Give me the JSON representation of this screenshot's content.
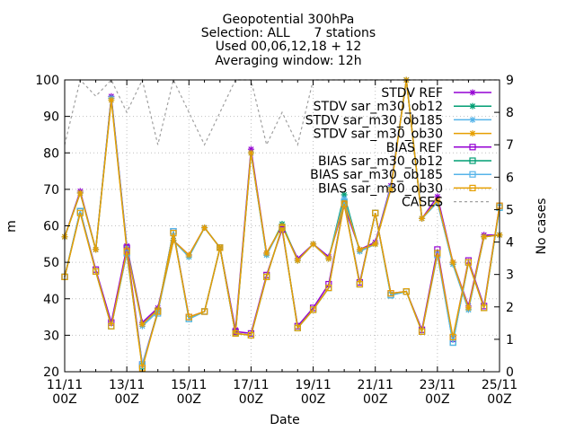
{
  "title_lines": [
    "Geopotential 300hPa",
    "Selection: ALL      7 stations",
    "Used 00,06,12,18 + 12",
    "Averaging window: 12h"
  ],
  "chart_data": {
    "type": "line",
    "xlabel": "Date",
    "ylabel": "m",
    "y2label": "No cases",
    "ylim": [
      20,
      100
    ],
    "y2lim": [
      0,
      9
    ],
    "yticks": [
      20,
      30,
      40,
      50,
      60,
      70,
      80,
      90,
      100
    ],
    "y2ticks": [
      0,
      1,
      2,
      3,
      4,
      5,
      6,
      7,
      8,
      9
    ],
    "xlim": [
      0,
      28
    ],
    "x_tick_labels": [
      {
        "x": 0,
        "l1": "11/11",
        "l2": "00Z"
      },
      {
        "x": 4,
        "l1": "13/11",
        "l2": "00Z"
      },
      {
        "x": 8,
        "l1": "15/11",
        "l2": "00Z"
      },
      {
        "x": 12,
        "l1": "17/11",
        "l2": "00Z"
      },
      {
        "x": 16,
        "l1": "19/11",
        "l2": "00Z"
      },
      {
        "x": 20,
        "l1": "21/11",
        "l2": "00Z"
      },
      {
        "x": 24,
        "l1": "23/11",
        "l2": "00Z"
      },
      {
        "x": 28,
        "l1": "25/11",
        "l2": "00Z"
      }
    ],
    "grid": true,
    "legend_position": "top-right",
    "series": [
      {
        "name": "STDV REF",
        "color": "#9400d3",
        "marker": "star",
        "axis": "y",
        "x": [
          0,
          1,
          2,
          3,
          4,
          5,
          6,
          7,
          8,
          9,
          10,
          11,
          12,
          13,
          14,
          15,
          16,
          17,
          18,
          19,
          20,
          21,
          22,
          23,
          24,
          25,
          26,
          27,
          28
        ],
        "values": [
          57,
          69.5,
          53.5,
          95.5,
          54.5,
          33.5,
          37.5,
          56,
          52,
          59.5,
          54,
          31.5,
          81,
          52.5,
          60,
          51,
          55,
          51.5,
          65.5,
          53.5,
          55.5,
          71,
          100,
          62,
          68,
          50,
          38,
          57.5,
          57.5
        ]
      },
      {
        "name": "STDV sar_m30_ob12",
        "color": "#009e73",
        "marker": "star",
        "axis": "y",
        "x": [
          0,
          1,
          2,
          3,
          4,
          5,
          6,
          7,
          8,
          9,
          10,
          11,
          12,
          13,
          14,
          15,
          16,
          17,
          18,
          19,
          20,
          21,
          22,
          23,
          24,
          25,
          26,
          27,
          28
        ],
        "values": [
          57,
          69,
          53.5,
          95,
          54,
          33,
          37,
          56,
          51.5,
          59.5,
          54,
          30.5,
          80,
          52,
          60.5,
          50.5,
          55,
          51,
          68.5,
          53,
          55,
          70.5,
          100,
          62,
          66.5,
          49.5,
          37,
          57,
          57.5
        ]
      },
      {
        "name": "STDV sar_m30_ob185",
        "color": "#56b4e9",
        "marker": "star",
        "axis": "y",
        "x": [
          0,
          1,
          2,
          3,
          4,
          5,
          6,
          7,
          8,
          9,
          10,
          11,
          12,
          13,
          14,
          15,
          16,
          17,
          18,
          19,
          20,
          21,
          22,
          23,
          24,
          25,
          26,
          27,
          28
        ],
        "values": [
          57,
          69,
          53.5,
          95,
          54,
          32.5,
          36.5,
          56,
          51.5,
          59.5,
          54,
          30.5,
          80,
          52,
          60,
          50.5,
          55,
          51,
          67.5,
          53,
          55,
          70.5,
          100,
          62,
          66.5,
          49.5,
          37,
          57,
          57.5
        ]
      },
      {
        "name": "STDV sar_m30_ob30",
        "color": "#e69f00",
        "marker": "star",
        "axis": "y",
        "x": [
          0,
          1,
          2,
          3,
          4,
          5,
          6,
          7,
          8,
          9,
          10,
          11,
          12,
          13,
          14,
          15,
          16,
          17,
          18,
          19,
          20,
          21,
          22,
          23,
          24,
          25,
          26,
          27,
          28
        ],
        "values": [
          57,
          69,
          53.5,
          94.5,
          53.5,
          33,
          37,
          56,
          52,
          59.5,
          54,
          30.5,
          80,
          52.5,
          60,
          50.5,
          55,
          51,
          66.5,
          53.5,
          55,
          70,
          100,
          62,
          67,
          50,
          37.5,
          57,
          57.5
        ]
      },
      {
        "name": "BIAS REF",
        "color": "#9400d3",
        "marker": "box",
        "axis": "y",
        "x": [
          0,
          1,
          2,
          3,
          4,
          5,
          6,
          7,
          8,
          9,
          10,
          11,
          12,
          13,
          14,
          15,
          16,
          17,
          18,
          19,
          20,
          21,
          22,
          23,
          24,
          25,
          26,
          27,
          28
        ],
        "values": [
          46,
          64,
          48,
          33.5,
          54,
          22,
          36.5,
          58.5,
          35,
          36.5,
          54,
          31,
          30.5,
          46.5,
          59,
          32.5,
          37.5,
          44,
          66,
          44.5,
          63.5,
          41.5,
          42,
          31.5,
          53.5,
          29,
          50.5,
          38,
          65.5
        ]
      },
      {
        "name": "BIAS sar_m30_ob12",
        "color": "#009e73",
        "marker": "box",
        "axis": "y",
        "x": [
          0,
          1,
          2,
          3,
          4,
          5,
          6,
          7,
          8,
          9,
          10,
          11,
          12,
          13,
          14,
          15,
          16,
          17,
          18,
          19,
          20,
          21,
          22,
          23,
          24,
          25,
          26,
          27,
          28
        ],
        "values": [
          46,
          64,
          47.5,
          32.5,
          52.5,
          21.5,
          36.5,
          58.5,
          34.5,
          36.5,
          54,
          30.5,
          30,
          46,
          59.5,
          32,
          37,
          43,
          66.5,
          44,
          63.5,
          41,
          42,
          31,
          52.5,
          28,
          50,
          37.5,
          65
        ]
      },
      {
        "name": "BIAS sar_m30_ob185",
        "color": "#56b4e9",
        "marker": "box",
        "axis": "y",
        "x": [
          0,
          1,
          2,
          3,
          4,
          5,
          6,
          7,
          8,
          9,
          10,
          11,
          12,
          13,
          14,
          15,
          16,
          17,
          18,
          19,
          20,
          21,
          22,
          23,
          24,
          25,
          26,
          27,
          28
        ],
        "values": [
          46,
          64,
          47.5,
          32.5,
          52.5,
          22,
          36,
          58.5,
          34.5,
          36.5,
          54,
          30.5,
          30,
          46,
          59.5,
          32,
          37,
          43,
          66.5,
          44,
          63.5,
          41,
          42,
          31,
          52,
          28,
          50,
          37.5,
          65
        ]
      },
      {
        "name": "BIAS sar_m30_ob30",
        "color": "#e69f00",
        "marker": "box",
        "axis": "y",
        "x": [
          0,
          1,
          2,
          3,
          4,
          5,
          6,
          7,
          8,
          9,
          10,
          11,
          12,
          13,
          14,
          15,
          16,
          17,
          18,
          19,
          20,
          21,
          22,
          23,
          24,
          25,
          26,
          27,
          28
        ],
        "values": [
          46,
          63.5,
          47.5,
          32.5,
          53,
          21,
          36.5,
          58,
          35,
          36.5,
          54,
          30.5,
          30,
          46,
          59.5,
          32,
          37,
          43,
          66,
          44,
          63.5,
          41.5,
          42,
          31,
          52.5,
          29.5,
          50,
          37.5,
          65.5
        ]
      },
      {
        "name": "CASES",
        "color": "#a0a0a0",
        "marker": "none",
        "dashed": true,
        "axis": "y2",
        "x": [
          0,
          1,
          2,
          3,
          4,
          5,
          6,
          7,
          8,
          9,
          10,
          11,
          12,
          13,
          14,
          15,
          16,
          17,
          18,
          19,
          20,
          21,
          22,
          23,
          24,
          25,
          26,
          27,
          28
        ],
        "values": [
          7,
          9,
          8.5,
          9,
          8,
          9,
          7,
          9,
          8,
          7,
          8,
          9,
          9,
          7,
          8,
          7,
          9,
          9,
          9,
          9,
          9,
          9,
          9,
          9,
          9,
          9,
          9,
          9,
          9
        ]
      }
    ]
  }
}
